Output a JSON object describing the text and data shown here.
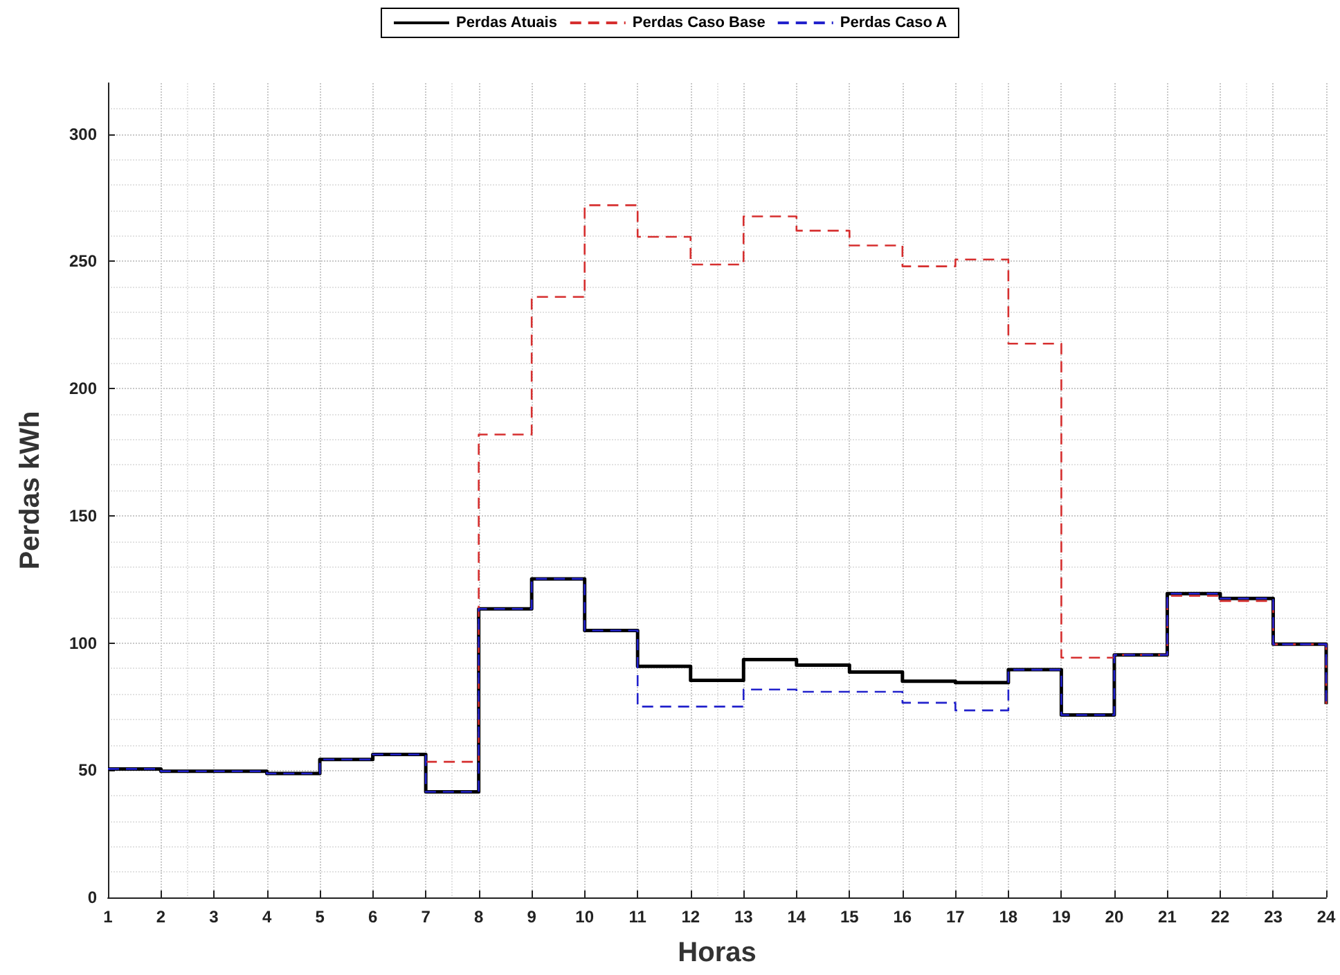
{
  "chart_data": {
    "type": "step",
    "xlabel": "Horas",
    "ylabel": "Perdas kWh",
    "x": [
      1,
      2,
      3,
      4,
      5,
      6,
      7,
      8,
      9,
      10,
      11,
      12,
      13,
      14,
      15,
      16,
      17,
      18,
      19,
      20,
      21,
      22,
      23,
      24
    ],
    "series": [
      {
        "name": "Perdas Atuais",
        "color": "#000000",
        "line_style": "solid",
        "values": [
          50.5,
          49.6,
          49.6,
          48.7,
          54.2,
          56.2,
          41.5,
          113.4,
          125.2,
          104.9,
          90.8,
          85.3,
          93.5,
          91.3,
          88.6,
          85,
          84.4,
          89.5,
          71.7,
          95.3,
          119.4,
          117.5,
          99.5,
          76
        ]
      },
      {
        "name": "Perdas Caso Base",
        "color": "#d62f2f",
        "line_style": "dashed",
        "values": [
          null,
          null,
          null,
          null,
          null,
          null,
          53.3,
          181.9,
          236,
          272,
          259.6,
          248.7,
          267.6,
          262,
          256.2,
          248,
          250.7,
          217.6,
          94.2,
          95.3,
          118.5,
          116.5,
          99.5,
          76
        ]
      },
      {
        "name": "Perdas Caso A",
        "color": "#2222cc",
        "line_style": "dashed",
        "values": [
          50.5,
          49.6,
          49.6,
          48.7,
          54.2,
          56.2,
          41.5,
          113.4,
          125.2,
          104.9,
          75,
          75,
          81.7,
          80.8,
          80.8,
          76.5,
          73.5,
          89.5,
          71.7,
          95.3,
          119.4,
          117.5,
          99.5,
          76
        ]
      }
    ],
    "xlim": [
      1,
      24
    ],
    "xticks": [
      1,
      2,
      3,
      4,
      5,
      6,
      7,
      8,
      9,
      10,
      11,
      12,
      13,
      14,
      15,
      16,
      17,
      18,
      19,
      20,
      21,
      22,
      23,
      24
    ],
    "ylim": [
      0,
      320
    ],
    "yticks": [
      0,
      50,
      100,
      150,
      200,
      250,
      300
    ],
    "grid": true,
    "legend": "top"
  }
}
